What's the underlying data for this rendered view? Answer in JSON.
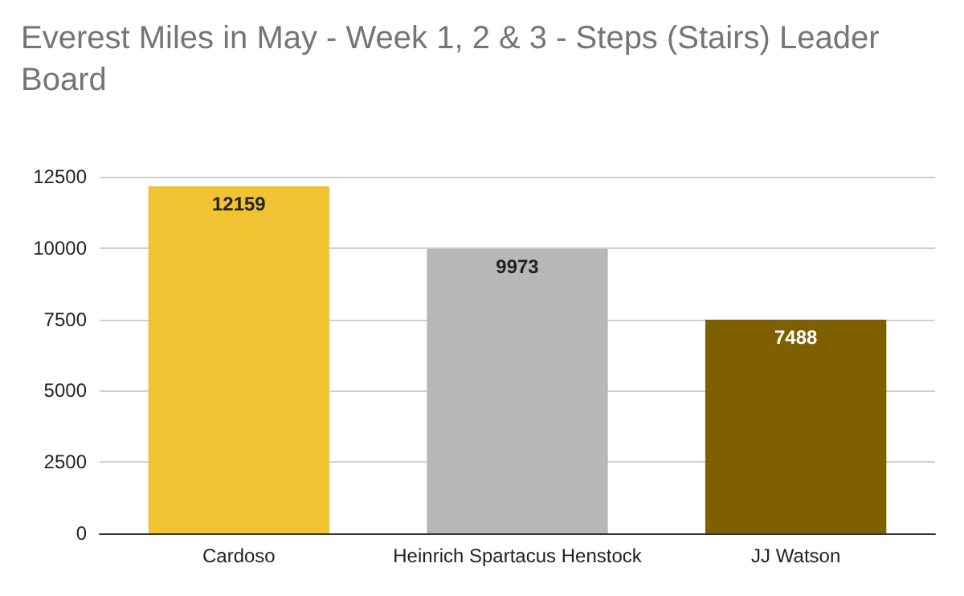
{
  "chart_data": {
    "type": "bar",
    "title": "Everest Miles in May - Week 1, 2 & 3 - Steps (Stairs) Leader Board",
    "categories": [
      "Cardoso",
      "Heinrich Spartacus Henstock",
      "JJ Watson"
    ],
    "values": [
      12159,
      9973,
      7488
    ],
    "colors": [
      "#f1c232",
      "#b7b7b7",
      "#7f6000"
    ],
    "ylim": [
      0,
      12500
    ],
    "yticks": [
      0,
      2500,
      5000,
      7500,
      10000,
      12500
    ],
    "grid": "y",
    "data_labels": true
  }
}
